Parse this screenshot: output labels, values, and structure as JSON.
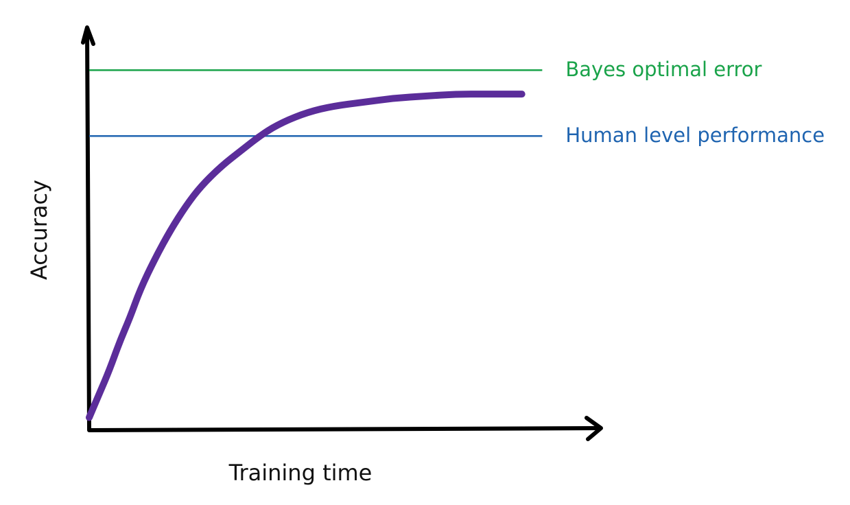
{
  "chart_data": {
    "type": "line",
    "xlabel": "Training time",
    "ylabel": "Accuracy",
    "xlim": [
      0,
      100
    ],
    "ylim": [
      0,
      100
    ],
    "series": [
      {
        "color": "#5b2d9a",
        "x": [
          0,
          2,
          4,
          6,
          8,
          10,
          13,
          16,
          19,
          22,
          26,
          30,
          34,
          38,
          43,
          48,
          54,
          60,
          66,
          72,
          78,
          82,
          85
        ],
        "y": [
          3,
          9,
          15,
          22,
          28,
          35,
          43,
          50,
          56,
          61,
          66,
          70,
          74,
          77,
          79.5,
          81,
          82,
          83,
          83.5,
          84,
          84,
          84,
          84
        ]
      }
    ],
    "reference_lines": [
      {
        "label": "Bayes optimal error",
        "y": 90,
        "x_end": 89,
        "color": "#1aa34a"
      },
      {
        "label": "Human level performance",
        "y": 73.5,
        "x_end": 89,
        "color": "#1f64b0"
      }
    ],
    "grid": false,
    "legend": "none"
  }
}
